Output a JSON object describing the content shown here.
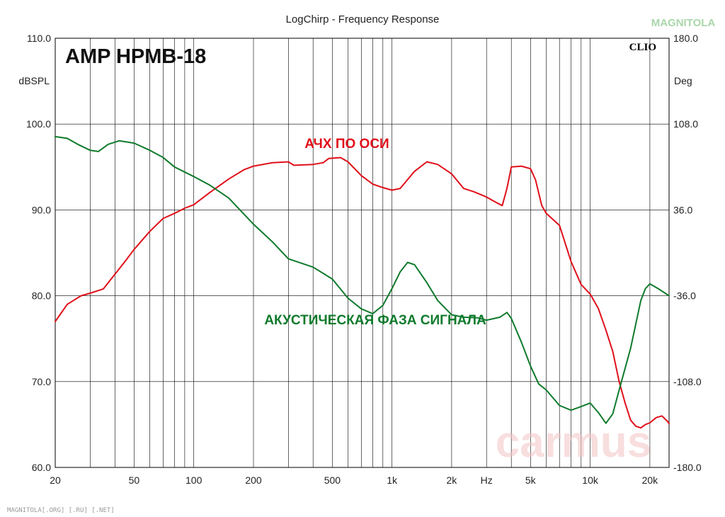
{
  "chart_data": {
    "type": "line",
    "title": "LogChirp - Frequency Response",
    "model": "AMP HPMB-18",
    "brand": "CLIO",
    "left_axis": {
      "unit": "dBSPL",
      "range": [
        60,
        110
      ],
      "ticks": [
        "110.0",
        "100.0",
        "90.0",
        "80.0",
        "70.0",
        "60.0"
      ]
    },
    "right_axis": {
      "unit": "Deg",
      "range": [
        -180,
        180
      ],
      "ticks": [
        "180.0",
        "108.0",
        "36.0",
        "-36.0",
        "-108.0",
        "-180.0"
      ]
    },
    "x_axis": {
      "scale": "log",
      "range": [
        20,
        25000
      ],
      "tick_labels": [
        {
          "f": 20,
          "label": "20"
        },
        {
          "f": 50,
          "label": "50"
        },
        {
          "f": 100,
          "label": "100"
        },
        {
          "f": 200,
          "label": "200"
        },
        {
          "f": 500,
          "label": "500"
        },
        {
          "f": 1000,
          "label": "1k"
        },
        {
          "f": 2000,
          "label": "2k"
        },
        {
          "f": 3000,
          "label": "Hz"
        },
        {
          "f": 5000,
          "label": "5k"
        },
        {
          "f": 10000,
          "label": "10k"
        },
        {
          "f": 20000,
          "label": "20k"
        }
      ]
    },
    "grid": true,
    "series": [
      {
        "name": "АЧХ ПО ОСИ",
        "axis": "left",
        "color": "#e0101a",
        "points": [
          [
            20,
            77
          ],
          [
            23,
            79
          ],
          [
            27,
            80
          ],
          [
            30,
            80.3
          ],
          [
            35,
            80.8
          ],
          [
            40,
            82.5
          ],
          [
            45,
            84
          ],
          [
            50,
            85.4
          ],
          [
            60,
            87.5
          ],
          [
            70,
            89
          ],
          [
            80,
            89.6
          ],
          [
            90,
            90.2
          ],
          [
            100,
            90.6
          ],
          [
            120,
            92
          ],
          [
            150,
            93.6
          ],
          [
            180,
            94.7
          ],
          [
            200,
            95.1
          ],
          [
            250,
            95.5
          ],
          [
            300,
            95.6
          ],
          [
            320,
            95.2
          ],
          [
            400,
            95.3
          ],
          [
            450,
            95.5
          ],
          [
            480,
            96.0
          ],
          [
            550,
            96.1
          ],
          [
            600,
            95.6
          ],
          [
            700,
            94.0
          ],
          [
            800,
            93.0
          ],
          [
            900,
            92.6
          ],
          [
            1000,
            92.3
          ],
          [
            1100,
            92.5
          ],
          [
            1300,
            94.5
          ],
          [
            1500,
            95.6
          ],
          [
            1700,
            95.3
          ],
          [
            2000,
            94.2
          ],
          [
            2300,
            92.5
          ],
          [
            2600,
            92.1
          ],
          [
            3000,
            91.5
          ],
          [
            3400,
            90.8
          ],
          [
            3600,
            90.5
          ],
          [
            3800,
            92.5
          ],
          [
            4000,
            95.0
          ],
          [
            4500,
            95.1
          ],
          [
            5000,
            94.8
          ],
          [
            5300,
            93.5
          ],
          [
            5700,
            90.5
          ],
          [
            6000,
            89.6
          ],
          [
            7000,
            88.2
          ],
          [
            8000,
            84.0
          ],
          [
            9000,
            81.3
          ],
          [
            10000,
            80.2
          ],
          [
            11000,
            78.5
          ],
          [
            12000,
            76.0
          ],
          [
            13000,
            73.5
          ],
          [
            14000,
            70.0
          ],
          [
            15000,
            67.5
          ],
          [
            16000,
            65.5
          ],
          [
            17000,
            64.8
          ],
          [
            18000,
            64.6
          ],
          [
            19000,
            65.0
          ],
          [
            20000,
            65.2
          ],
          [
            21500,
            65.8
          ],
          [
            23000,
            66.0
          ],
          [
            24500,
            65.4
          ],
          [
            25000,
            65.1
          ]
        ]
      },
      {
        "name": "АКУСТИЧЕСКАЯ ФАЗА СИГНАЛА",
        "axis": "right",
        "color": "#0f7a2c",
        "points": [
          [
            20,
            97.5
          ],
          [
            23,
            96
          ],
          [
            26,
            91
          ],
          [
            30,
            86
          ],
          [
            33,
            85
          ],
          [
            37,
            91
          ],
          [
            42,
            94
          ],
          [
            50,
            92
          ],
          [
            60,
            86
          ],
          [
            70,
            80
          ],
          [
            80,
            72
          ],
          [
            100,
            64
          ],
          [
            120,
            57
          ],
          [
            150,
            46
          ],
          [
            200,
            24
          ],
          [
            250,
            9
          ],
          [
            300,
            -5
          ],
          [
            400,
            -12
          ],
          [
            500,
            -22
          ],
          [
            600,
            -38
          ],
          [
            700,
            -47
          ],
          [
            800,
            -51
          ],
          [
            900,
            -44
          ],
          [
            1000,
            -30
          ],
          [
            1100,
            -16
          ],
          [
            1200,
            -8
          ],
          [
            1300,
            -10
          ],
          [
            1500,
            -25
          ],
          [
            1700,
            -40
          ],
          [
            2000,
            -52
          ],
          [
            2300,
            -54
          ],
          [
            2700,
            -54.5
          ],
          [
            3000,
            -56.5
          ],
          [
            3500,
            -54
          ],
          [
            3800,
            -50
          ],
          [
            4000,
            -55
          ],
          [
            4500,
            -75
          ],
          [
            5000,
            -95
          ],
          [
            5500,
            -110
          ],
          [
            6000,
            -115
          ],
          [
            7000,
            -128
          ],
          [
            8000,
            -132
          ],
          [
            9000,
            -129
          ],
          [
            10000,
            -126
          ],
          [
            11000,
            -134
          ],
          [
            12000,
            -143
          ],
          [
            13000,
            -135
          ],
          [
            14000,
            -115
          ],
          [
            16000,
            -80
          ],
          [
            18000,
            -40
          ],
          [
            19000,
            -30
          ],
          [
            20000,
            -26
          ],
          [
            22000,
            -30
          ],
          [
            25000,
            -36
          ]
        ]
      }
    ]
  },
  "overlay": {
    "watermark": "carmus",
    "logo_text": "MAGNITOLA",
    "footer": "MAGNITOLA[.ORG] [.RU] [.NET]"
  }
}
